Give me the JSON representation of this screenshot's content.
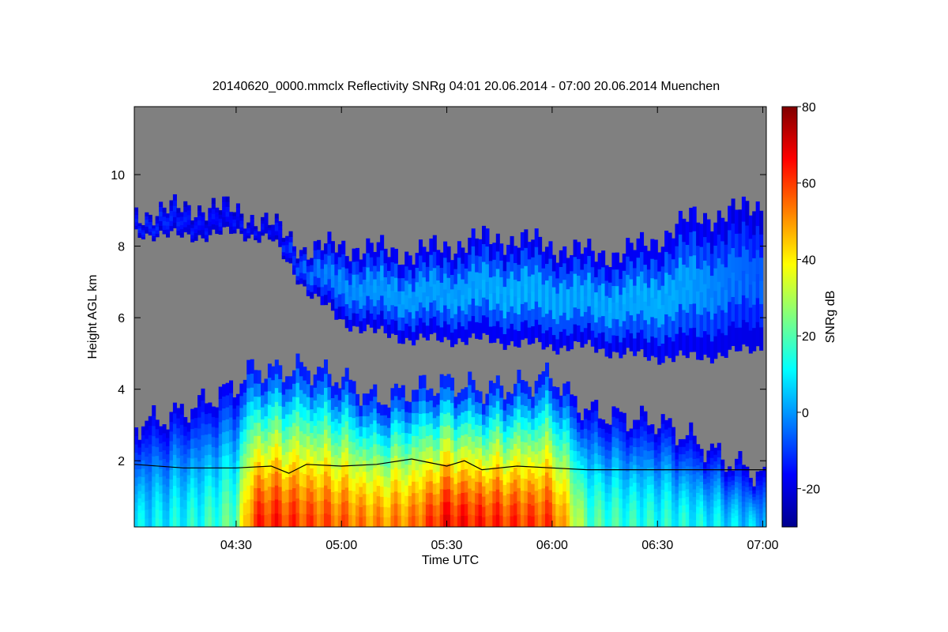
{
  "chart_data": {
    "type": "heatmap",
    "title": "20140620_0000.mmclx Reflectivity SNRg   04:01 20.06.2014 - 07:00 20.06.2014 Muenchen",
    "xlabel": "Time UTC",
    "ylabel": "Height AGL km",
    "colorbar_label": "SNRg dB",
    "x_range": [
      "04:01",
      "07:01"
    ],
    "x_ticks": [
      "04:30",
      "05:00",
      "05:30",
      "06:00",
      "06:30",
      "07:00"
    ],
    "y_range": [
      0.15,
      11.9
    ],
    "y_ticks": [
      2,
      4,
      6,
      8,
      10
    ],
    "color_range": [
      -30,
      80
    ],
    "colorbar_ticks": [
      -20,
      0,
      20,
      40,
      60,
      80
    ],
    "colormap": "jet",
    "background_color": "#808080",
    "line_color": "#000000",
    "upper_cloud_layer": {
      "time": [
        "04:01",
        "04:10",
        "04:20",
        "04:30",
        "04:40",
        "04:50",
        "05:00",
        "05:10",
        "05:20",
        "05:30",
        "05:40",
        "05:50",
        "06:00",
        "06:10",
        "06:20",
        "06:30",
        "06:40",
        "06:50",
        "07:00"
      ],
      "base_km": [
        8.4,
        8.3,
        8.3,
        8.4,
        8.2,
        6.8,
        5.9,
        5.6,
        5.4,
        5.4,
        5.4,
        5.3,
        5.2,
        5.2,
        5.0,
        4.9,
        4.9,
        5.0,
        5.2
      ],
      "top_km": [
        8.9,
        9.0,
        9.1,
        9.0,
        8.6,
        7.9,
        8.0,
        7.9,
        7.8,
        8.0,
        8.2,
        8.2,
        8.0,
        7.8,
        7.8,
        8.2,
        8.8,
        8.9,
        9.2
      ],
      "snr_db": [
        -12,
        -10,
        -14,
        -14,
        -16,
        -2,
        2,
        4,
        5,
        5,
        6,
        7,
        6,
        6,
        6,
        7,
        5,
        0,
        -4
      ]
    },
    "lower_cloud_layer": {
      "time": [
        "04:01",
        "04:10",
        "04:20",
        "04:30",
        "04:35",
        "04:40",
        "04:50",
        "05:00",
        "05:10",
        "05:20",
        "05:30",
        "05:40",
        "05:50",
        "06:00",
        "06:05",
        "06:10",
        "06:20",
        "06:30",
        "06:40",
        "06:50",
        "07:00"
      ],
      "top_km": [
        3.0,
        3.2,
        3.6,
        4.1,
        4.6,
        4.5,
        4.6,
        4.3,
        3.7,
        4.0,
        4.2,
        4.0,
        4.1,
        4.4,
        3.8,
        3.4,
        3.2,
        3.1,
        2.6,
        2.0,
        1.6
      ],
      "core_snr_db": [
        8,
        10,
        14,
        22,
        60,
        62,
        58,
        55,
        50,
        52,
        65,
        62,
        60,
        58,
        40,
        20,
        16,
        14,
        12,
        8,
        4
      ]
    },
    "boundary_layer_line": {
      "time": [
        "04:01",
        "04:15",
        "04:30",
        "04:40",
        "04:45",
        "04:50",
        "05:00",
        "05:10",
        "05:20",
        "05:25",
        "05:30",
        "05:35",
        "05:40",
        "05:45",
        "05:50",
        "06:00",
        "06:10",
        "06:20",
        "06:30",
        "06:40",
        "06:50",
        "07:01"
      ],
      "height_km": [
        1.9,
        1.8,
        1.8,
        1.85,
        1.65,
        1.9,
        1.85,
        1.9,
        2.05,
        1.95,
        1.85,
        2.0,
        1.75,
        1.8,
        1.85,
        1.8,
        1.75,
        1.75,
        1.75,
        1.75,
        1.75,
        1.75
      ]
    }
  }
}
